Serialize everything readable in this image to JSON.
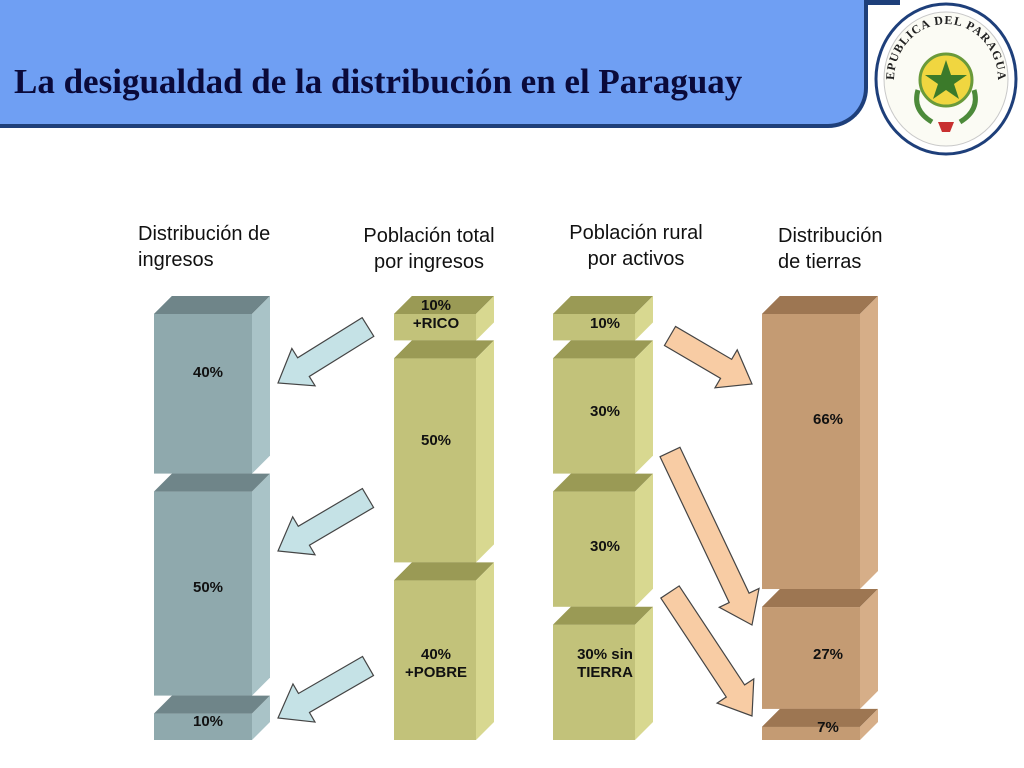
{
  "title": "La desigualdad de la distribución en el Paraguay",
  "seal": {
    "text": "REPUBLICA DEL PARAGUAY",
    "icon": "star-seal-icon"
  },
  "columns": [
    {
      "id": "ingresos",
      "label_lines": [
        "Distribución de",
        "ingresos"
      ],
      "color_front": "#8fa9ad",
      "color_side": "#a9c3c7",
      "color_top": "#6f8589",
      "segments": [
        {
          "value": 40,
          "label": [
            "40%"
          ]
        },
        {
          "value": 50,
          "label": [
            "50%"
          ]
        },
        {
          "value": 10,
          "label": [
            "10%"
          ]
        }
      ]
    },
    {
      "id": "poblacion-total",
      "label_lines": [
        "Población total",
        "por ingresos"
      ],
      "color_front": "#c2c27a",
      "color_side": "#d8d890",
      "color_top": "#9a9a55",
      "segments": [
        {
          "value": 10,
          "label": [
            "10%",
            "+RICO"
          ]
        },
        {
          "value": 50,
          "label": [
            "50%"
          ]
        },
        {
          "value": 40,
          "label": [
            "40%",
            "+POBRE"
          ]
        }
      ]
    },
    {
      "id": "poblacion-rural",
      "label_lines": [
        "Población rural",
        "por activos"
      ],
      "color_front": "#c2c27a",
      "color_side": "#d8d890",
      "color_top": "#9a9a55",
      "segments": [
        {
          "value": 10,
          "label": [
            "10%"
          ]
        },
        {
          "value": 30,
          "label": [
            "30%"
          ]
        },
        {
          "value": 30,
          "label": [
            "30%"
          ]
        },
        {
          "value": 30,
          "label": [
            "30% sin",
            "TIERRA"
          ]
        }
      ]
    },
    {
      "id": "tierras",
      "label_lines": [
        "Distribución",
        "de tierras"
      ],
      "color_front": "#c49b73",
      "color_side": "#d6ae88",
      "color_top": "#9d7652",
      "segments": [
        {
          "value": 66,
          "label": [
            "66%"
          ]
        },
        {
          "value": 27,
          "label": [
            "27%"
          ]
        },
        {
          "value": 7,
          "label": [
            "7%"
          ]
        }
      ]
    }
  ],
  "arrow_colors": {
    "blue": "#c5e2e6",
    "orange": "#f8cca4"
  }
}
